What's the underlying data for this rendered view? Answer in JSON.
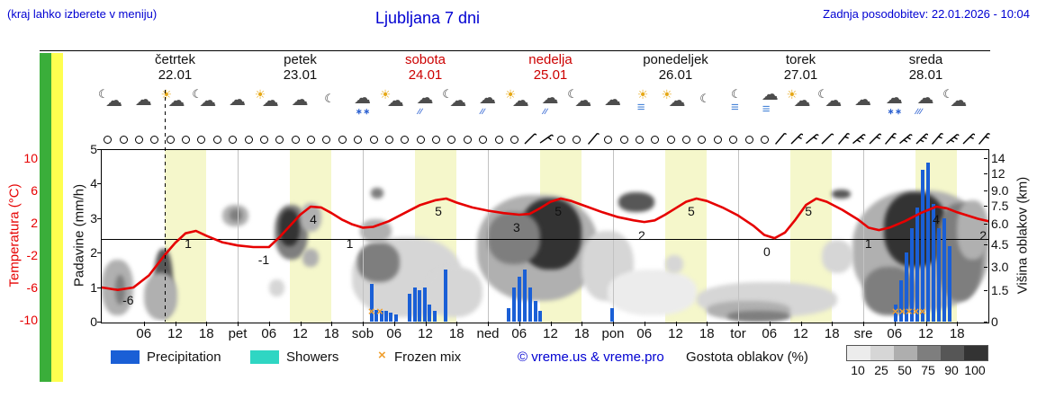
{
  "header": {
    "hint": "(kraj lahko izberete v meniju)",
    "title": "Ljubljana 7 dni",
    "updated": "Zadnja posodobitev: 22.01.2026 - 10:04"
  },
  "axes": {
    "temp_label": "Temperatura (°C)",
    "precip_label": "Padavine (mm/h)",
    "cloud_label": "Višina oblakov (km)",
    "temp_ticks": [
      10,
      6,
      2,
      -2,
      -6,
      -10
    ],
    "precip_ticks": [
      5,
      4,
      3,
      2,
      1,
      0
    ],
    "cloud_ticks": [
      {
        "km": 14,
        "label": "14"
      },
      {
        "km": 12,
        "label": "12"
      },
      {
        "km": 9,
        "label": "9.0"
      },
      {
        "km": 7.5,
        "label": "7.5"
      },
      {
        "km": 6,
        "label": "6.0"
      },
      {
        "km": 4.5,
        "label": "4.5"
      },
      {
        "km": 3,
        "label": "3.0"
      },
      {
        "km": 1.5,
        "label": "1.5"
      },
      {
        "km": 0,
        "label": "0"
      }
    ]
  },
  "days": [
    {
      "name": "četrtek",
      "date": "22.01",
      "weekend": false
    },
    {
      "name": "petek",
      "date": "23.01",
      "weekend": false
    },
    {
      "name": "sobota",
      "date": "24.01",
      "weekend": true
    },
    {
      "name": "nedelja",
      "date": "25.01",
      "weekend": true
    },
    {
      "name": "ponedeljek",
      "date": "26.01",
      "weekend": false
    },
    {
      "name": "torek",
      "date": "27.01",
      "weekend": false
    },
    {
      "name": "sreda",
      "date": "28.01",
      "weekend": false
    }
  ],
  "x_ticks": [
    {
      "t": 6,
      "l": "06"
    },
    {
      "t": 12,
      "l": "12"
    },
    {
      "t": 18,
      "l": "18"
    },
    {
      "t": 24,
      "l": "pet"
    },
    {
      "t": 30,
      "l": "06"
    },
    {
      "t": 36,
      "l": "12"
    },
    {
      "t": 42,
      "l": "18"
    },
    {
      "t": 48,
      "l": "sob"
    },
    {
      "t": 54,
      "l": "06"
    },
    {
      "t": 60,
      "l": "12"
    },
    {
      "t": 66,
      "l": "18"
    },
    {
      "t": 72,
      "l": "ned"
    },
    {
      "t": 78,
      "l": "06"
    },
    {
      "t": 84,
      "l": "12"
    },
    {
      "t": 90,
      "l": "18"
    },
    {
      "t": 96,
      "l": "pon"
    },
    {
      "t": 102,
      "l": "06"
    },
    {
      "t": 108,
      "l": "12"
    },
    {
      "t": 114,
      "l": "18"
    },
    {
      "t": 120,
      "l": "tor"
    },
    {
      "t": 126,
      "l": "06"
    },
    {
      "t": 132,
      "l": "12"
    },
    {
      "t": 138,
      "l": "18"
    },
    {
      "t": 144,
      "l": "sre"
    },
    {
      "t": 150,
      "l": "06"
    },
    {
      "t": 156,
      "l": "12"
    },
    {
      "t": 162,
      "l": "18"
    }
  ],
  "legend": {
    "precipitation": {
      "label": "Precipitation",
      "color": "#1a5fd6"
    },
    "showers": {
      "label": "Showers",
      "color": "#2fd6c3"
    },
    "frozen": {
      "label": "Frozen mix",
      "symbol": "×",
      "color": "#f0a030"
    },
    "credit": "© vreme.us & vreme.pro"
  },
  "cloud_legend": {
    "title": "Gostota oblakov (%)",
    "values": [
      10,
      25,
      50,
      75,
      90,
      100
    ],
    "colors": [
      "#ececec",
      "#d6d6d6",
      "#aeaeae",
      "#7e7e7e",
      "#565656",
      "#333333"
    ]
  },
  "chart_data": {
    "type": "meteogram",
    "time_axis": {
      "start_day": "četrtek 22.01",
      "hours_span": 168,
      "now_hour": 10.1
    },
    "temp_axis_c": [
      -10,
      10
    ],
    "precip_axis_mmh": [
      0,
      5
    ],
    "cloud_axis_km": [
      0,
      15
    ],
    "temperature_c": [
      [
        -2,
        -6
      ],
      [
        1,
        -6.3
      ],
      [
        4,
        -6
      ],
      [
        7,
        -4.5
      ],
      [
        10,
        -2
      ],
      [
        12,
        -0.5
      ],
      [
        14,
        0.7
      ],
      [
        16,
        1
      ],
      [
        18,
        0.4
      ],
      [
        21,
        -0.4
      ],
      [
        24,
        -0.8
      ],
      [
        27,
        -1
      ],
      [
        30,
        -1
      ],
      [
        32,
        0.2
      ],
      [
        34,
        1.6
      ],
      [
        36,
        3
      ],
      [
        38,
        4
      ],
      [
        40,
        3.9
      ],
      [
        42,
        3.2
      ],
      [
        44,
        2.4
      ],
      [
        46,
        1.8
      ],
      [
        48,
        1.4
      ],
      [
        50,
        1.5
      ],
      [
        53,
        2.2
      ],
      [
        56,
        3.2
      ],
      [
        59,
        4.2
      ],
      [
        62,
        4.8
      ],
      [
        64,
        5
      ],
      [
        66,
        4.5
      ],
      [
        69,
        3.9
      ],
      [
        72,
        3.5
      ],
      [
        75,
        3.2
      ],
      [
        78,
        3
      ],
      [
        80,
        3.1
      ],
      [
        82,
        3.8
      ],
      [
        84,
        4.6
      ],
      [
        86,
        5
      ],
      [
        88,
        4.7
      ],
      [
        91,
        4
      ],
      [
        94,
        3.3
      ],
      [
        97,
        2.7
      ],
      [
        100,
        2.3
      ],
      [
        102,
        2.1
      ],
      [
        104,
        2.3
      ],
      [
        106,
        3
      ],
      [
        108,
        3.8
      ],
      [
        110,
        4.6
      ],
      [
        112,
        5
      ],
      [
        114,
        4.7
      ],
      [
        117,
        3.9
      ],
      [
        120,
        2.9
      ],
      [
        123,
        1.6
      ],
      [
        125,
        0.5
      ],
      [
        127,
        0.1
      ],
      [
        129,
        0.8
      ],
      [
        131,
        2.4
      ],
      [
        133,
        4.2
      ],
      [
        135,
        5
      ],
      [
        137,
        4.6
      ],
      [
        140,
        3.6
      ],
      [
        143,
        2.4
      ],
      [
        145,
        1.4
      ],
      [
        147,
        1.1
      ],
      [
        149,
        1.4
      ],
      [
        152,
        2.2
      ],
      [
        155,
        3.2
      ],
      [
        158,
        4
      ],
      [
        160,
        3.8
      ],
      [
        162,
        3.3
      ],
      [
        164,
        2.9
      ],
      [
        166,
        2.5
      ],
      [
        168,
        2.2
      ]
    ],
    "temp_point_labels": [
      {
        "t": 3,
        "v": -6
      },
      {
        "t": 14.5,
        "v": 1
      },
      {
        "t": 29,
        "v": -1
      },
      {
        "t": 38.5,
        "v": 4
      },
      {
        "t": 45.5,
        "v": 1
      },
      {
        "t": 62.5,
        "v": 5
      },
      {
        "t": 77.5,
        "v": 3
      },
      {
        "t": 85.5,
        "v": 5
      },
      {
        "t": 101.5,
        "v": 2
      },
      {
        "t": 111,
        "v": 5
      },
      {
        "t": 125.5,
        "v": 0
      },
      {
        "t": 133.5,
        "v": 5
      },
      {
        "t": 145,
        "v": 1
      },
      {
        "t": 158,
        "v": 4
      },
      {
        "t": 167,
        "v": 2
      }
    ],
    "precip_bars_mmh": [
      [
        49.7,
        1.1
      ],
      [
        50.6,
        0.35
      ],
      [
        51.6,
        0.3
      ],
      [
        52.5,
        0.3
      ],
      [
        53.3,
        0.25
      ],
      [
        54.4,
        0.2
      ],
      [
        57,
        0.8
      ],
      [
        58,
        1.0
      ],
      [
        58.9,
        0.9
      ],
      [
        59.9,
        1.0
      ],
      [
        60.8,
        0.5
      ],
      [
        61.8,
        0.3
      ],
      [
        63.9,
        1.5
      ],
      [
        76,
        0.4
      ],
      [
        77,
        1.0
      ],
      [
        78,
        1.3
      ],
      [
        79.1,
        1.5
      ],
      [
        80.1,
        1.0
      ],
      [
        81.1,
        0.6
      ],
      [
        82,
        0.3
      ],
      [
        95.8,
        0.4
      ],
      [
        150.2,
        0.5
      ],
      [
        151.2,
        1.2
      ],
      [
        152.3,
        2.0
      ],
      [
        153.3,
        2.7
      ],
      [
        154.3,
        3.3
      ],
      [
        155.4,
        4.4
      ],
      [
        156.4,
        4.6
      ],
      [
        157.4,
        3.4
      ],
      [
        158.5,
        2.7
      ],
      [
        159.5,
        3.0
      ],
      [
        160.5,
        2.2
      ]
    ],
    "frozen_mix_hours": [
      49.7,
      51.3,
      150.2,
      151.5,
      152.8,
      154.1,
      155.4
    ],
    "daylight_bands": {
      "start_hour": 10,
      "end_hour": 18
    },
    "day_separators_hours": [
      24,
      48,
      72,
      96,
      120,
      144
    ],
    "zero_line_c": 0,
    "wind_symbols": [
      0,
      0,
      0,
      0,
      0,
      0,
      0,
      0,
      0,
      0,
      0,
      0,
      0,
      0,
      0,
      0,
      0,
      0,
      0,
      0,
      0,
      0,
      0,
      0,
      0,
      0,
      0,
      {
        "a": 45,
        "n": 1
      },
      {
        "a": 55,
        "n": 2
      },
      0,
      0,
      {
        "a": 40,
        "n": 1
      },
      0,
      0,
      0,
      0,
      0,
      0,
      0,
      0,
      0,
      0,
      0,
      {
        "a": 40,
        "n": 1
      },
      {
        "a": 45,
        "n": 2
      },
      {
        "a": 50,
        "n": 2
      },
      {
        "a": 45,
        "n": 1
      },
      {
        "a": 40,
        "n": 2
      },
      {
        "a": 50,
        "n": 3
      },
      {
        "a": 45,
        "n": 2
      },
      {
        "a": 40,
        "n": 2
      },
      {
        "a": 50,
        "n": 3
      },
      {
        "a": 45,
        "n": 3
      },
      {
        "a": 40,
        "n": 2
      },
      {
        "a": 50,
        "n": 3
      },
      {
        "a": 45,
        "n": 2
      },
      {
        "a": 40,
        "n": 2
      }
    ],
    "weather_icons": [
      "cloud-moon",
      "cloud",
      "sun-cloud",
      "cloud-moon",
      "cloud",
      "sun-cloud",
      "cloud",
      "moon",
      "snow-cloud",
      "sun-cloud",
      "rain-cloud",
      "cloud-moon",
      "rain-cloud",
      "sun-cloud",
      "rain-cloud",
      "cloud-moon",
      "cloud",
      "sun-fog",
      "sun-cloud",
      "moon",
      "moon-fog",
      "cloud-fog",
      "sun-cloud",
      "cloud-moon",
      "cloud",
      "snow-cloud",
      "heavy-rain-cloud",
      "cloud-moon"
    ],
    "cloud_regions": [
      [
        -2,
        4,
        0.3,
        3.5,
        50
      ],
      [
        0.5,
        2.5,
        0.8,
        2.5,
        75
      ],
      [
        8,
        11.5,
        0.2,
        4.2,
        90
      ],
      [
        6,
        12.5,
        0.1,
        2.6,
        50
      ],
      [
        21,
        26,
        5.8,
        7.6,
        50
      ],
      [
        22.5,
        24.8,
        6.2,
        7.2,
        75
      ],
      [
        30,
        33,
        1.2,
        2.2,
        25
      ],
      [
        31,
        37.5,
        3.5,
        7.6,
        75
      ],
      [
        32,
        36,
        4.4,
        7.2,
        100
      ],
      [
        36,
        40,
        5.4,
        7.8,
        50
      ],
      [
        36.5,
        39.5,
        3.0,
        4.2,
        50
      ],
      [
        46,
        67,
        0.2,
        5.0,
        25
      ],
      [
        47,
        55,
        2.0,
        4.6,
        75
      ],
      [
        47.5,
        53.5,
        4.6,
        6.4,
        50
      ],
      [
        49.5,
        52,
        8.2,
        9.4,
        75
      ],
      [
        60,
        71,
        0.2,
        3.0,
        25
      ],
      [
        70,
        93,
        1.0,
        8.6,
        50
      ],
      [
        78,
        90,
        2.8,
        8.2,
        100
      ],
      [
        72,
        82,
        3.2,
        7.0,
        75
      ],
      [
        90,
        100,
        1.0,
        5.5,
        25
      ],
      [
        97,
        104,
        7.0,
        8.8,
        90
      ],
      [
        95,
        112,
        0.3,
        2.8,
        10
      ],
      [
        106,
        109.5,
        2.6,
        3.8,
        25
      ],
      [
        112,
        139,
        0.2,
        2.0,
        25
      ],
      [
        114,
        130,
        0.1,
        1.0,
        50
      ],
      [
        118,
        130,
        0,
        0.5,
        75
      ],
      [
        136,
        142,
        2.6,
        4.8,
        25
      ],
      [
        138,
        141.5,
        8.2,
        9.2,
        90
      ],
      [
        142,
        168,
        0.5,
        9.0,
        50
      ],
      [
        148,
        160,
        3.0,
        8.8,
        100
      ],
      [
        158,
        167,
        1.0,
        7.8,
        75
      ],
      [
        144,
        154,
        0.3,
        3.0,
        75
      ],
      [
        162,
        168,
        3.5,
        8.0,
        50
      ]
    ],
    "density_colors": {
      "10": "#ececec",
      "25": "#d6d6d6",
      "50": "#b0b0b0",
      "75": "#7e7e7e",
      "90": "#575757",
      "100": "#333333"
    }
  }
}
